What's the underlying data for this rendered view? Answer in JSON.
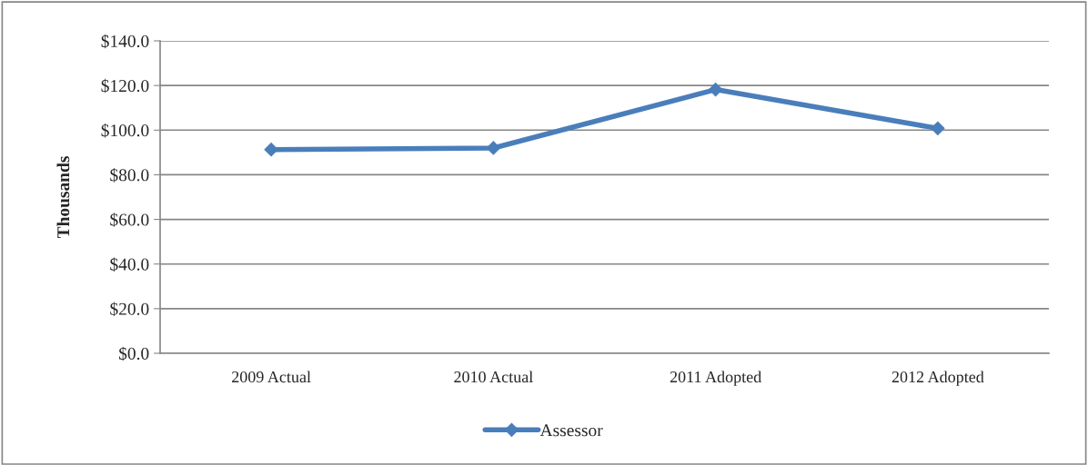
{
  "chart_data": {
    "type": "line",
    "ylabel": "Thousands",
    "categories": [
      "2009 Actual",
      "2010 Actual",
      "2011 Adopted",
      "2012 Adopted"
    ],
    "series": [
      {
        "name": "Assessor",
        "color": "#4a7ebb",
        "values": [
          91.3,
          92.0,
          118.2,
          100.8
        ]
      }
    ],
    "ylim": [
      0,
      140
    ],
    "yticks": [
      {
        "value": 0,
        "label": "$0.0"
      },
      {
        "value": 20,
        "label": "$20.0"
      },
      {
        "value": 40,
        "label": "$40.0"
      },
      {
        "value": 60,
        "label": "$60.0"
      },
      {
        "value": 80,
        "label": "$80.0"
      },
      {
        "value": 100,
        "label": "$100.0"
      },
      {
        "value": 120,
        "label": "$120.0"
      },
      {
        "value": 140,
        "label": "$140.0"
      }
    ],
    "grid": "y",
    "legend": "bottom",
    "marker": "diamond",
    "line_style": "solid"
  }
}
